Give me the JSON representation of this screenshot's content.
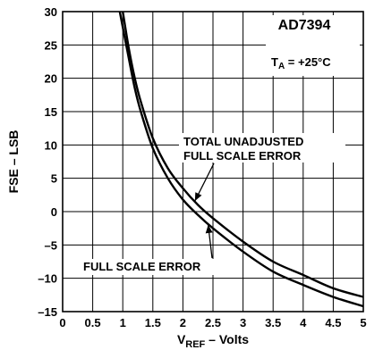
{
  "chart_data": {
    "type": "line",
    "title": "AD7394",
    "condition": {
      "main": "T",
      "sub": "A",
      "rest": " = +25°C"
    },
    "xlabel": {
      "main": "V",
      "sub": "REF",
      "rest": " – Volts"
    },
    "ylabel": "FSE – LSB",
    "xlim": [
      0,
      5
    ],
    "ylim": [
      -15,
      30
    ],
    "x_ticks": [
      "0",
      "0.5",
      "1",
      "1.5",
      "2",
      "2.5",
      "3",
      "3.5",
      "4",
      "4.5",
      "5"
    ],
    "x_tick_values": [
      0,
      0.5,
      1,
      1.5,
      2,
      2.5,
      3,
      3.5,
      4,
      4.5,
      5
    ],
    "y_ticks": [
      "30",
      "25",
      "20",
      "15",
      "10",
      "5",
      "0",
      "–5",
      "–10",
      "–15"
    ],
    "y_tick_values": [
      30,
      25,
      20,
      15,
      10,
      5,
      0,
      -5,
      -10,
      -15
    ],
    "grid": true,
    "series": [
      {
        "name": "TOTAL UNADJUSTED FULL SCALE ERROR",
        "x": [
          1.0,
          1.1,
          1.2,
          1.3,
          1.5,
          1.75,
          2.0,
          2.25,
          2.5,
          3.0,
          3.5,
          4.0,
          4.5,
          5.0
        ],
        "y": [
          30,
          24.5,
          20,
          16.5,
          11,
          6.5,
          3.5,
          1,
          -1,
          -4.5,
          -7.5,
          -9.5,
          -11.5,
          -12.8
        ]
      },
      {
        "name": "FULL SCALE ERROR",
        "x": [
          0.95,
          1.1,
          1.2,
          1.3,
          1.5,
          1.75,
          2.0,
          2.25,
          2.5,
          3.0,
          3.5,
          4.0,
          4.5,
          5.0
        ],
        "y": [
          30,
          23,
          18.5,
          15,
          9.5,
          5,
          1.8,
          -0.5,
          -2.5,
          -6,
          -9,
          -11,
          -12.8,
          -14.2
        ]
      }
    ],
    "annotations": [
      {
        "lines": [
          "TOTAL UNADJUSTED",
          "FULL SCALE ERROR"
        ],
        "series": 0
      },
      {
        "lines": [
          "FULL SCALE ERROR"
        ],
        "series": 1
      }
    ]
  }
}
